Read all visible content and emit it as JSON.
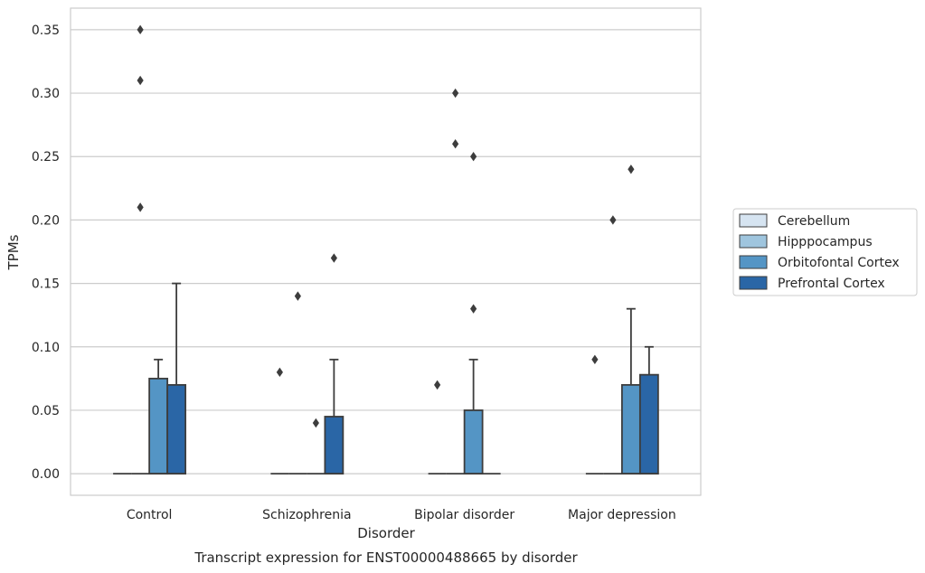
{
  "chart_data": {
    "type": "box",
    "caption": "Transcript expression for ENST00000488665 by disorder",
    "xlabel": "Disorder",
    "ylabel": "TPMs",
    "ylim": [
      -0.017,
      0.367
    ],
    "yticks": [
      0.0,
      0.05,
      0.1,
      0.15,
      0.2,
      0.25,
      0.3,
      0.35
    ],
    "ytick_labels": [
      "0.00",
      "0.05",
      "0.10",
      "0.15",
      "0.20",
      "0.25",
      "0.30",
      "0.35"
    ],
    "grid": "horizontal",
    "legend_position": "right",
    "categories": [
      "Control",
      "Schizophrenia",
      "Bipolar disorder",
      "Major depression"
    ],
    "series": [
      {
        "name": "Cerebellum",
        "color": "#d6e4f1",
        "boxes": [
          {
            "q1": 0,
            "median": 0,
            "q3": 0,
            "whisker_low": 0,
            "whisker_high": 0,
            "fliers": []
          },
          {
            "q1": 0,
            "median": 0,
            "q3": 0,
            "whisker_low": 0,
            "whisker_high": 0,
            "fliers": []
          },
          {
            "q1": 0,
            "median": 0,
            "q3": 0,
            "whisker_low": 0,
            "whisker_high": 0,
            "fliers": []
          },
          {
            "q1": 0,
            "median": 0,
            "q3": 0,
            "whisker_low": 0,
            "whisker_high": 0,
            "fliers": [
              0.09
            ]
          }
        ]
      },
      {
        "name": "Hipppocampus",
        "color": "#9fc5de",
        "boxes": [
          {
            "q1": 0,
            "median": 0,
            "q3": 0,
            "whisker_low": 0,
            "whisker_high": 0,
            "fliers": [
              0.21,
              0.31,
              0.35
            ]
          },
          {
            "q1": 0,
            "median": 0,
            "q3": 0,
            "whisker_low": 0,
            "whisker_high": 0,
            "fliers": [
              0.14
            ]
          },
          {
            "q1": 0,
            "median": 0,
            "q3": 0,
            "whisker_low": 0,
            "whisker_high": 0,
            "fliers": [
              0.26,
              0.3
            ]
          },
          {
            "q1": 0,
            "median": 0,
            "q3": 0,
            "whisker_low": 0,
            "whisker_high": 0,
            "fliers": [
              0.2
            ]
          }
        ]
      },
      {
        "name": "Orbitofontal Cortex",
        "color": "#5495c5",
        "boxes": [
          {
            "q1": 0,
            "median": 0,
            "q3": 0.075,
            "whisker_low": 0,
            "whisker_high": 0.09,
            "fliers": []
          },
          {
            "q1": 0,
            "median": 0,
            "q3": 0,
            "whisker_low": 0,
            "whisker_high": 0,
            "fliers": [
              0.04
            ]
          },
          {
            "q1": 0,
            "median": 0,
            "q3": 0.05,
            "whisker_low": 0,
            "whisker_high": 0.09,
            "fliers": [
              0.13,
              0.25
            ]
          },
          {
            "q1": 0,
            "median": 0,
            "q3": 0.07,
            "whisker_low": 0,
            "whisker_high": 0.13,
            "fliers": [
              0.24
            ]
          }
        ]
      },
      {
        "name": "Prefrontal Cortex",
        "color": "#2a66a6",
        "boxes": [
          {
            "q1": 0,
            "median": 0,
            "q3": 0.07,
            "whisker_low": 0,
            "whisker_high": 0.15,
            "fliers": []
          },
          {
            "q1": 0,
            "median": 0,
            "q3": 0.045,
            "whisker_low": 0,
            "whisker_high": 0.09,
            "fliers": [
              0.17
            ]
          },
          {
            "q1": 0,
            "median": 0,
            "q3": 0,
            "whisker_low": 0,
            "whisker_high": 0,
            "fliers": []
          },
          {
            "q1": 0,
            "median": 0,
            "q3": 0.078,
            "whisker_low": 0,
            "whisker_high": 0.1,
            "fliers": []
          }
        ]
      }
    ],
    "extra_fliers": [
      {
        "category_index": 1,
        "x_offset_group": -1.5,
        "value": 0.08
      },
      {
        "category_index": 2,
        "x_offset_group": -1.5,
        "value": 0.07
      }
    ]
  }
}
